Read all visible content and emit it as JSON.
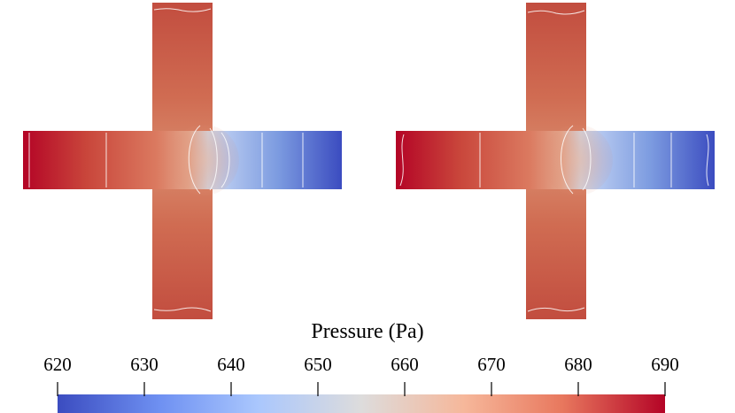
{
  "colorbar": {
    "title": "Pressure (Pa)",
    "min": 620,
    "max": 690,
    "ticks": [
      "620",
      "630",
      "640",
      "650",
      "660",
      "670",
      "680",
      "690"
    ],
    "colormap": [
      "#3b4cc0",
      "#6f91f2",
      "#aac7fd",
      "#dddcdc",
      "#f6b79a",
      "#e8785e",
      "#b40426"
    ],
    "colormap_name": "cool-warm"
  },
  "panels": [
    {
      "name": "left-cross",
      "left_arm_pressure": 690,
      "right_arm_pressure": 622,
      "vertical_arm_pressure": 673,
      "junction_pressure": 664
    },
    {
      "name": "right-cross",
      "left_arm_pressure": 690,
      "right_arm_pressure": 622,
      "vertical_arm_pressure": 673,
      "junction_pressure": 664
    }
  ]
}
